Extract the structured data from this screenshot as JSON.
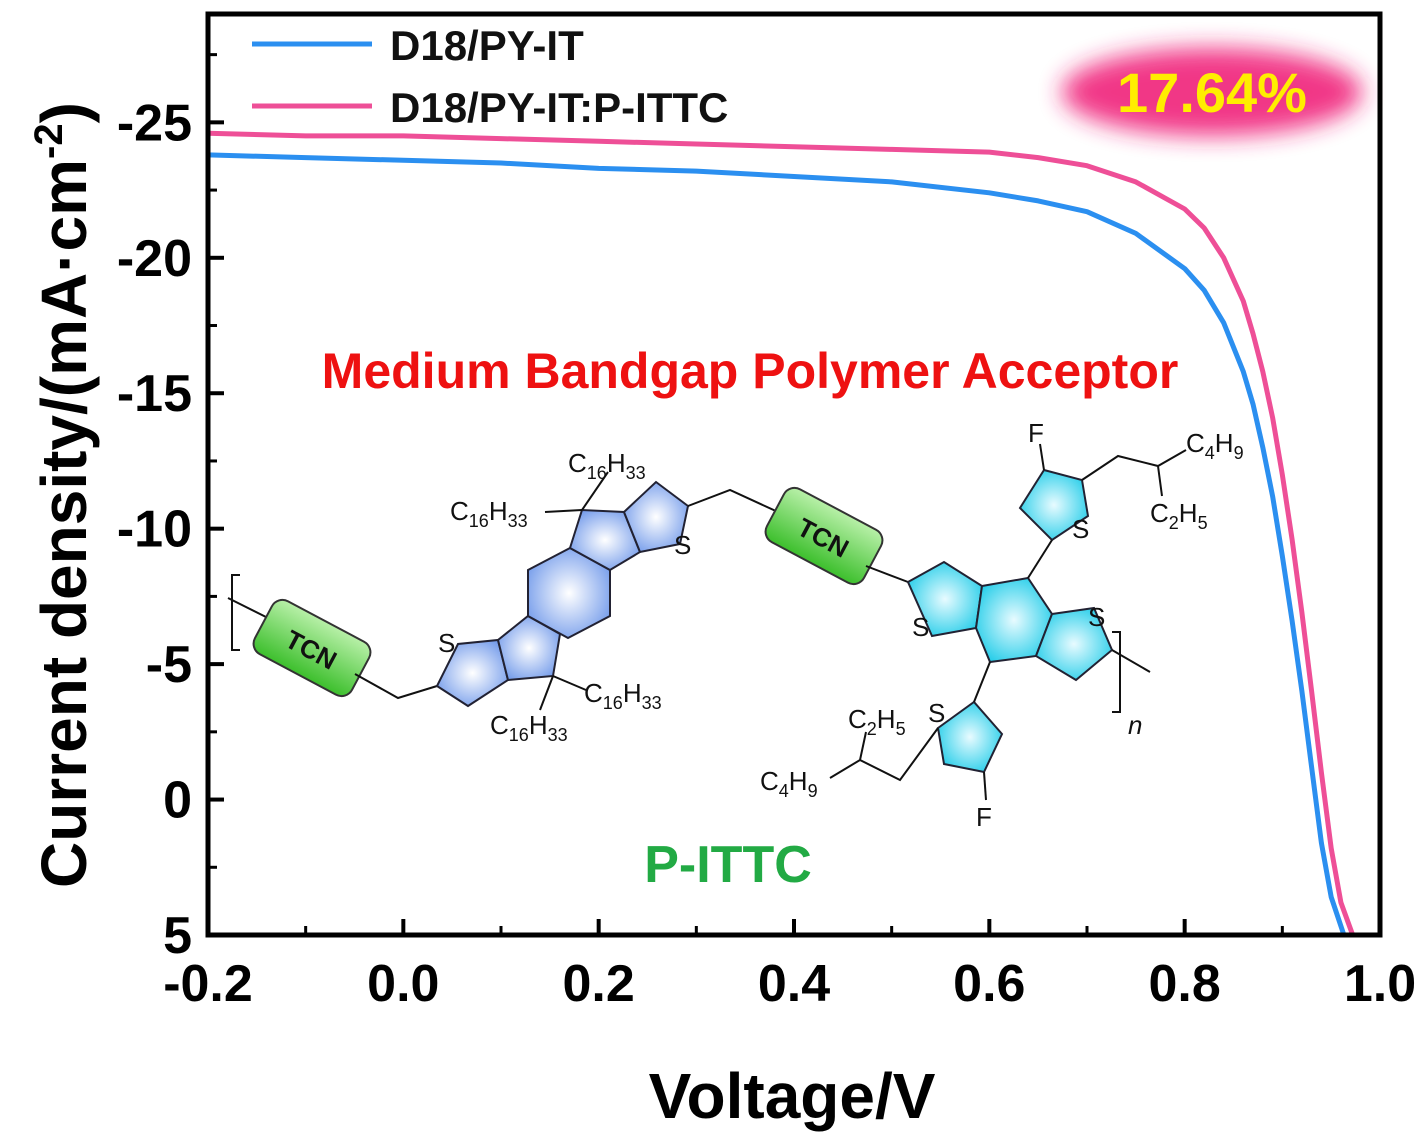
{
  "chart_data": {
    "type": "line",
    "xlabel": "Voltage/V",
    "ylabel": "Current density/(mA·cm⁻²)",
    "ylabel_parts": {
      "main": "Current density/(mA·cm",
      "sup": "-2",
      "close": ")"
    },
    "xlim": [
      -0.2,
      1.0
    ],
    "ylim": [
      5,
      -29
    ],
    "y_axis_inverted": true,
    "x_ticks": [
      "-0.2",
      "0.0",
      "0.2",
      "0.4",
      "0.6",
      "0.8",
      "1.0"
    ],
    "y_ticks": [
      "-25",
      "-20",
      "-15",
      "-10",
      "-5",
      "0",
      "5"
    ],
    "grid": false,
    "legend_position": "top-left",
    "series": [
      {
        "name": "D18/PY-IT",
        "color": "#2b8ff0",
        "x": [
          -0.2,
          -0.1,
          0.0,
          0.1,
          0.2,
          0.3,
          0.4,
          0.5,
          0.6,
          0.65,
          0.7,
          0.75,
          0.8,
          0.82,
          0.84,
          0.86,
          0.87,
          0.88,
          0.89,
          0.9,
          0.91,
          0.92,
          0.93,
          0.94,
          0.95,
          0.963
        ],
        "y": [
          -23.8,
          -23.7,
          -23.6,
          -23.5,
          -23.3,
          -23.2,
          -23.0,
          -22.8,
          -22.4,
          -22.1,
          -21.7,
          -20.9,
          -19.6,
          -18.8,
          -17.6,
          -15.8,
          -14.6,
          -13.0,
          -11.2,
          -9.0,
          -6.6,
          -4.0,
          -1.2,
          1.6,
          3.6,
          5.0
        ]
      },
      {
        "name": "D18/PY-IT:P-ITTC",
        "color": "#ee4f97",
        "x": [
          -0.2,
          -0.1,
          0.0,
          0.1,
          0.2,
          0.3,
          0.4,
          0.5,
          0.6,
          0.65,
          0.7,
          0.75,
          0.8,
          0.82,
          0.84,
          0.86,
          0.87,
          0.88,
          0.89,
          0.9,
          0.91,
          0.92,
          0.93,
          0.94,
          0.95,
          0.96,
          0.972
        ],
        "y": [
          -24.6,
          -24.5,
          -24.5,
          -24.4,
          -24.3,
          -24.2,
          -24.1,
          -24.0,
          -23.9,
          -23.7,
          -23.4,
          -22.8,
          -21.8,
          -21.1,
          -20.0,
          -18.4,
          -17.2,
          -15.8,
          -14.1,
          -12.0,
          -9.6,
          -6.9,
          -4.0,
          -1.0,
          1.8,
          3.8,
          5.0
        ]
      }
    ],
    "annotations": {
      "efficiency": "17.64%",
      "subtitle": "Medium Bandgap Polymer Acceptor",
      "polymer_name": "P-ITTC"
    },
    "colors": {
      "efficiency_text": "#ffee00",
      "efficiency_glow": "#f0207a",
      "subtitle": "#ee1111",
      "polymer_name": "#22aa44",
      "tcn_box": "#55d444",
      "ring_blue": "#7ea6ee",
      "ring_cyan": "#24d4f0"
    }
  },
  "molecule": {
    "tcn_labels": [
      "TCN",
      "TCN"
    ],
    "substituent_c16h33": "C16H33",
    "substituent_c4h9": "C4H9",
    "substituent_c2h5": "C2H5",
    "atom_s": "S",
    "atom_f": "F",
    "repeat_n": "n"
  }
}
